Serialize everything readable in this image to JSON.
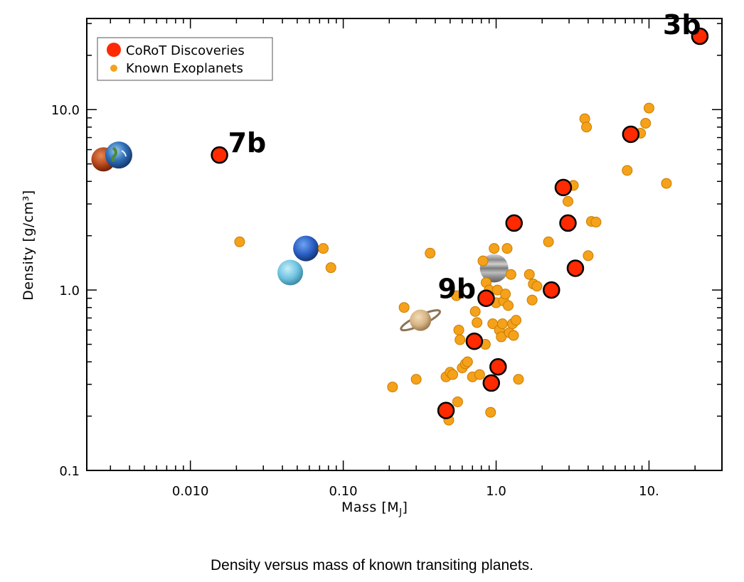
{
  "caption": "Density versus mass of known transiting planets.",
  "chart_data": {
    "type": "scatter",
    "xscale": "log",
    "yscale": "log",
    "xlim": [
      0.0021,
      30
    ],
    "ylim": [
      0.1,
      32
    ],
    "xlabel": "Mass [M",
    "xlabel_sub": "J",
    "xlabel_close": "]",
    "ylabel": "Density [g/cm³]",
    "xticks": [
      {
        "value": 0.01,
        "label": "0.010"
      },
      {
        "value": 0.1,
        "label": "0.10"
      },
      {
        "value": 1,
        "label": "1.0"
      },
      {
        "value": 10,
        "label": "10."
      }
    ],
    "yticks": [
      {
        "value": 0.1,
        "label": "0.1"
      },
      {
        "value": 1,
        "label": "1.0"
      },
      {
        "value": 10,
        "label": "10.0"
      }
    ],
    "legend": {
      "position": "top-left",
      "entries": [
        {
          "label": "CoRoT Discoveries",
          "color": "#ff2a00"
        },
        {
          "label": "Known Exoplanets",
          "color": "#f5a11a"
        }
      ]
    },
    "series": [
      {
        "name": "Known Exoplanets",
        "color": "#f5a11a",
        "points": [
          [
            0.021,
            1.85
          ],
          [
            0.074,
            1.7
          ],
          [
            0.083,
            1.33
          ],
          [
            0.21,
            0.29
          ],
          [
            0.25,
            0.8
          ],
          [
            0.3,
            0.32
          ],
          [
            0.37,
            1.6
          ],
          [
            0.47,
            0.33
          ],
          [
            0.49,
            0.19
          ],
          [
            0.5,
            0.35
          ],
          [
            0.52,
            0.34
          ],
          [
            0.55,
            0.93
          ],
          [
            0.56,
            0.24
          ],
          [
            0.57,
            0.6
          ],
          [
            0.58,
            0.53
          ],
          [
            0.6,
            0.37
          ],
          [
            0.63,
            0.39
          ],
          [
            0.65,
            0.4
          ],
          [
            0.7,
            0.33
          ],
          [
            0.73,
            0.76
          ],
          [
            0.75,
            0.66
          ],
          [
            0.78,
            0.34
          ],
          [
            0.82,
            1.45
          ],
          [
            0.85,
            0.5
          ],
          [
            0.86,
            1.1
          ],
          [
            0.9,
            1.0
          ],
          [
            0.92,
            0.21
          ],
          [
            0.95,
            0.65
          ],
          [
            0.97,
            1.7
          ],
          [
            1.0,
            0.85
          ],
          [
            1.02,
            1.0
          ],
          [
            1.05,
            0.6
          ],
          [
            1.08,
            0.55
          ],
          [
            1.1,
            0.65
          ],
          [
            1.12,
            0.87
          ],
          [
            1.15,
            0.95
          ],
          [
            1.18,
            1.7
          ],
          [
            1.2,
            0.82
          ],
          [
            1.22,
            0.58
          ],
          [
            1.25,
            1.22
          ],
          [
            1.28,
            0.65
          ],
          [
            1.3,
            0.56
          ],
          [
            1.35,
            0.68
          ],
          [
            1.4,
            0.32
          ],
          [
            1.65,
            1.22
          ],
          [
            1.72,
            0.88
          ],
          [
            1.75,
            1.08
          ],
          [
            1.85,
            1.05
          ],
          [
            2.2,
            1.85
          ],
          [
            2.95,
            3.1
          ],
          [
            3.2,
            3.8
          ],
          [
            3.8,
            8.9
          ],
          [
            3.9,
            8.0
          ],
          [
            4.0,
            1.55
          ],
          [
            4.2,
            2.4
          ],
          [
            4.5,
            2.38
          ],
          [
            7.2,
            4.6
          ],
          [
            8.8,
            7.4
          ],
          [
            9.5,
            8.4
          ],
          [
            10.0,
            10.2
          ],
          [
            13.0,
            3.9
          ]
        ]
      },
      {
        "name": "CoRoT Discoveries",
        "color": "#ff2a00",
        "points": [
          [
            0.0155,
            5.6
          ],
          [
            0.47,
            0.215
          ],
          [
            0.72,
            0.52
          ],
          [
            0.86,
            0.9
          ],
          [
            0.93,
            0.305
          ],
          [
            1.03,
            0.375
          ],
          [
            1.31,
            2.35
          ],
          [
            2.3,
            1.0
          ],
          [
            2.75,
            3.7
          ],
          [
            2.95,
            2.35
          ],
          [
            3.3,
            1.32
          ],
          [
            7.6,
            7.3
          ],
          [
            21.5,
            25.5
          ]
        ]
      }
    ],
    "labels": [
      {
        "text": "3b",
        "x": 21.5,
        "y": 25.5
      },
      {
        "text": "7b",
        "x": 0.0155,
        "y": 5.6
      },
      {
        "text": "9b",
        "x": 0.86,
        "y": 0.9
      }
    ],
    "reference_planets": [
      {
        "name": "mars-icon",
        "x": 0.0027,
        "y": 5.3,
        "color": "#b5451b"
      },
      {
        "name": "earth-icon",
        "x": 0.0034,
        "y": 5.6,
        "color": "#2f6fb8"
      },
      {
        "name": "neptune-icon",
        "x": 0.057,
        "y": 1.7,
        "color": "#2a5fc4"
      },
      {
        "name": "uranus-icon",
        "x": 0.045,
        "y": 1.25,
        "color": "#6fc3e0"
      },
      {
        "name": "saturn-icon",
        "x": 0.32,
        "y": 0.68,
        "color": "#d7b486"
      },
      {
        "name": "jupiter-icon",
        "x": 0.97,
        "y": 1.32,
        "color": "#9a9a9a"
      }
    ]
  }
}
